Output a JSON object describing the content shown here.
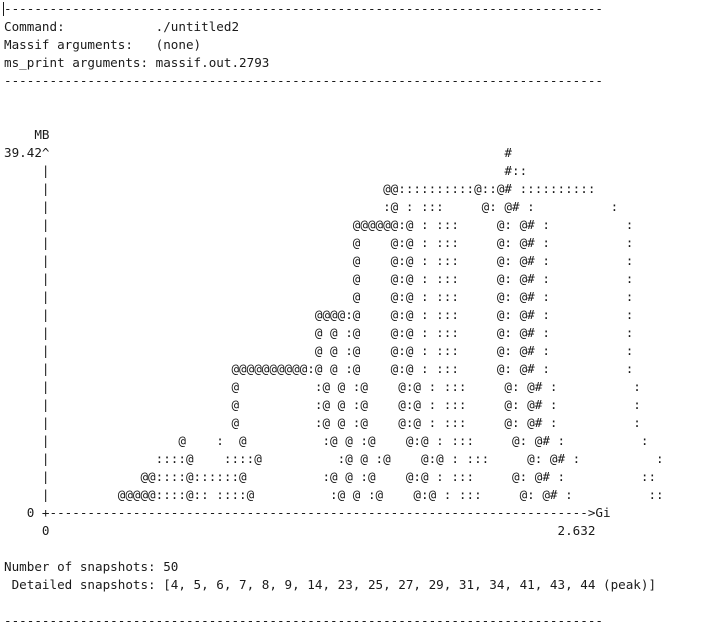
{
  "terminal": {
    "lines": [
      "-------------------------------------------------------------------------------",
      "Command:            ./untitled2",
      "Massif arguments:   (none)",
      "ms_print arguments: massif.out.2793",
      "-------------------------------------------------------------------------------",
      "",
      "",
      "    MB",
      "39.42^                                                            #",
      "     |                                                            #::",
      "     |                                            @@::::::::::@::@# ::::::::::",
      "     |                                            :@ : :::     @: @# :          :",
      "     |                                        @@@@@@:@ : :::     @: @# :          :",
      "     |                                        @    @:@ : :::     @: @# :          :",
      "     |                                        @    @:@ : :::     @: @# :          :",
      "     |                                        @    @:@ : :::     @: @# :          :",
      "     |                                        @    @:@ : :::     @: @# :          :",
      "     |                                   @@@@:@    @:@ : :::     @: @# :          :",
      "     |                                   @ @ :@    @:@ : :::     @: @# :          :",
      "     |                                   @ @ :@    @:@ : :::     @: @# :          :",
      "     |                        @@@@@@@@@@:@ @ :@    @:@ : :::     @: @# :          :",
      "     |                        @          :@ @ :@    @:@ : :::     @: @# :          :",
      "     |                        @          :@ @ :@    @:@ : :::     @: @# :          :",
      "     |                        @          :@ @ :@    @:@ : :::     @: @# :          :",
      "     |                 @    :  @          :@ @ :@    @:@ : :::     @: @# :          :",
      "     |              ::::@    ::::@          :@ @ :@    @:@ : :::     @: @# :          :",
      "     |            @@::::@::::::@          :@ @ :@    @:@ : :::     @: @# :          ::",
      "     |         @@@@@::::@:: ::::@          :@ @ :@    @:@ : :::     @: @# :          ::",
      "   0 +----------------------------------------------------------------------->Gi",
      "     0                                                                   2.632",
      "",
      "Number of snapshots: 50",
      " Detailed snapshots: [4, 5, 6, 7, 8, 9, 14, 23, 25, 27, 29, 31, 34, 41, 43, 44 (peak)]",
      "",
      "-------------------------------------------------------------------------------"
    ]
  }
}
